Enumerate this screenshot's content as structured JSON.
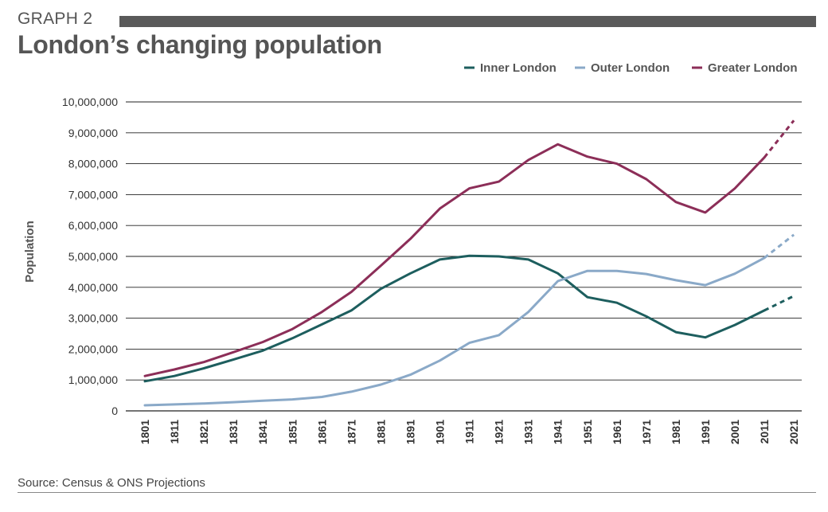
{
  "header": {
    "graph_label": "GRAPH 2",
    "title": "London’s changing population"
  },
  "footer": {
    "source": "Source: Census & ONS Projections"
  },
  "colors": {
    "inner": "#1d5e5e",
    "outer": "#8aa9c8",
    "greater": "#8c2e58",
    "grid": "#222222",
    "bar": "#5a5a5a"
  },
  "chart_data": {
    "type": "line",
    "title": "London’s changing population",
    "xlabel": "",
    "ylabel": "Population",
    "ylim": [
      0,
      10000000
    ],
    "yticks": [
      0,
      1000000,
      2000000,
      3000000,
      4000000,
      5000000,
      6000000,
      7000000,
      8000000,
      9000000,
      10000000
    ],
    "ytick_labels": [
      "0",
      "1,000,000",
      "2,000,000",
      "3,000,000",
      "4,000,000",
      "5,000,000",
      "6,000,000",
      "7,000,000",
      "8,000,000",
      "9,000,000",
      "10,000,000"
    ],
    "categories": [
      "1801",
      "1811",
      "1821",
      "1831",
      "1841",
      "1851",
      "1861",
      "1871",
      "1881",
      "1891",
      "1901",
      "1911",
      "1921",
      "1931",
      "1941",
      "1951",
      "1961",
      "1971",
      "1981",
      "1991",
      "2001",
      "2011",
      "2021"
    ],
    "projection_from": "2011",
    "legend_position": "top-right",
    "grid": "horizontal",
    "series": [
      {
        "key": "inner",
        "name": "Inner London",
        "values": [
          960000,
          1130000,
          1380000,
          1660000,
          1950000,
          2350000,
          2800000,
          3250000,
          3950000,
          4450000,
          4900000,
          5020000,
          5000000,
          4900000,
          4450000,
          3680000,
          3500000,
          3060000,
          2550000,
          2380000,
          2780000,
          3250000,
          3720000
        ]
      },
      {
        "key": "outer",
        "name": "Outer London",
        "values": [
          180000,
          210000,
          240000,
          280000,
          330000,
          370000,
          450000,
          620000,
          850000,
          1170000,
          1630000,
          2200000,
          2450000,
          3200000,
          4200000,
          4530000,
          4530000,
          4430000,
          4230000,
          4070000,
          4440000,
          4950000,
          5700000
        ]
      },
      {
        "key": "greater",
        "name": "Greater London",
        "values": [
          1130000,
          1340000,
          1580000,
          1900000,
          2230000,
          2650000,
          3200000,
          3850000,
          4700000,
          5570000,
          6550000,
          7200000,
          7420000,
          8120000,
          8630000,
          8230000,
          8000000,
          7500000,
          6760000,
          6420000,
          7200000,
          8200000,
          9400000
        ]
      }
    ]
  }
}
